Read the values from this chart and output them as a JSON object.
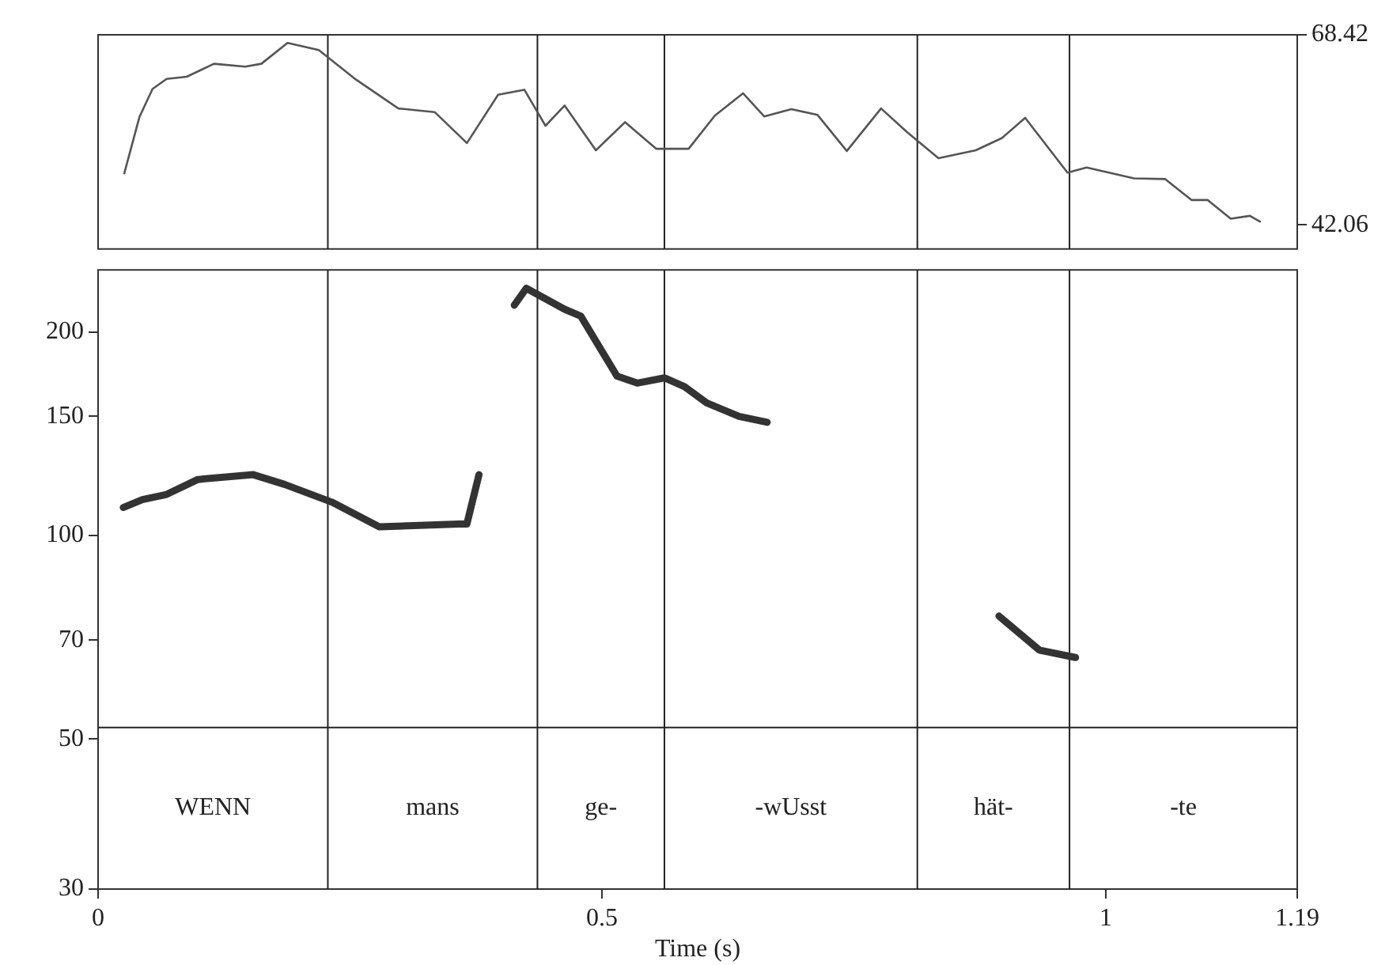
{
  "chart_data": [
    {
      "type": "line",
      "xlim": [
        0,
        1.19
      ],
      "y2lim": [
        38.7,
        68.42
      ],
      "y2ticks": [
        68.42,
        42.06
      ],
      "tick_labels": "y",
      "grid": false,
      "series": [
        {
          "color": "#555555",
          "axis": "y2",
          "x": [
            0.026,
            0.041,
            0.054,
            0.068,
            0.088,
            0.115,
            0.146,
            0.162,
            0.188,
            0.219,
            0.256,
            0.298,
            0.334,
            0.366,
            0.397,
            0.423,
            0.444,
            0.463,
            0.494,
            0.523,
            0.554,
            0.586,
            0.612,
            0.64,
            0.661,
            0.688,
            0.714,
            0.743,
            0.777,
            0.803,
            0.834,
            0.871,
            0.897,
            0.92,
            0.962,
            0.981,
            1.028,
            1.059,
            1.085,
            1.101,
            1.124,
            1.143,
            1.153
          ],
          "values": [
            49.2,
            57.0,
            60.9,
            62.3,
            62.6,
            64.4,
            64.0,
            64.4,
            67.3,
            66.3,
            62.2,
            58.2,
            57.7,
            53.4,
            60.1,
            60.8,
            55.8,
            58.6,
            52.4,
            56.3,
            52.6,
            52.6,
            57.2,
            60.3,
            57.1,
            58.1,
            57.3,
            52.3,
            58.2,
            54.9,
            51.3,
            52.4,
            54.1,
            56.9,
            49.3,
            50.0,
            48.5,
            48.4,
            45.5,
            45.5,
            42.9,
            43.3,
            42.5
          ]
        }
      ],
      "ref_lines": [
        {
          "axis": "x",
          "value": 0.228
        },
        {
          "axis": "x",
          "value": 0.436
        },
        {
          "axis": "x",
          "value": 0.562
        },
        {
          "axis": "x",
          "value": 0.813
        },
        {
          "axis": "x",
          "value": 0.964
        }
      ]
    },
    {
      "type": "line",
      "xlabel": "Time (s)",
      "xlim": [
        0,
        1.19
      ],
      "xticks": [
        0,
        0.5,
        1,
        1.19
      ],
      "ylim": [
        30,
        247
      ],
      "yticks": [
        30,
        50,
        70,
        100,
        150,
        200
      ],
      "log": true,
      "grid": false,
      "series": [
        {
          "color": "#333333",
          "x": [
            0.025,
            0.044,
            0.068,
            0.099,
            0.154,
            0.185,
            0.232,
            0.279,
            0.358,
            0.366,
            0.378
          ],
          "values": [
            110,
            113,
            115,
            121,
            123,
            119,
            112,
            103,
            104,
            104,
            123
          ]
        },
        {
          "color": "#333333",
          "x": [
            0.413,
            0.425,
            0.463,
            0.479,
            0.515,
            0.535,
            0.562,
            0.582,
            0.604,
            0.636,
            0.664
          ],
          "values": [
            219,
            232,
            216,
            211,
            172,
            168,
            171,
            166,
            157,
            150,
            147
          ]
        },
        {
          "color": "#333333",
          "x": [
            0.894,
            0.934,
            0.97
          ],
          "values": [
            76,
            67.7,
            66
          ]
        }
      ],
      "ref_lines": [
        {
          "axis": "x",
          "value": 0.228
        },
        {
          "axis": "x",
          "value": 0.436
        },
        {
          "axis": "x",
          "value": 0.562
        },
        {
          "axis": "x",
          "value": 0.813
        },
        {
          "axis": "x",
          "value": 0.964
        },
        {
          "axis": "y",
          "value": 52
        }
      ],
      "annotations": [
        "WENN",
        "mans",
        "ge-",
        "-wUsst",
        "hät-",
        "-te"
      ]
    }
  ]
}
